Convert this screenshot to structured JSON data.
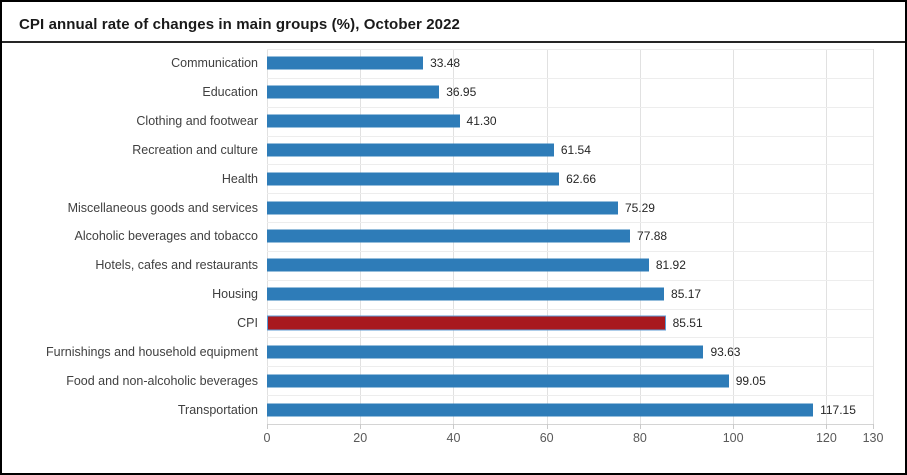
{
  "title": "CPI annual rate of changes in main groups (%), October 2022",
  "chart_data": {
    "type": "bar",
    "orientation": "horizontal",
    "title": "CPI annual rate of changes in main groups (%), October 2022",
    "categories": [
      "Communication",
      "Education",
      "Clothing and footwear",
      "Recreation and culture",
      "Health",
      "Miscellaneous goods and services",
      "Alcoholic beverages and tobacco",
      "Hotels, cafes and restaurants",
      "Housing",
      "CPI",
      "Furnishings and household equipment",
      "Food and non-alcoholic beverages",
      "Transportation"
    ],
    "values": [
      33.48,
      36.95,
      41.3,
      61.54,
      62.66,
      75.29,
      77.88,
      81.92,
      85.17,
      85.51,
      93.63,
      99.05,
      117.15
    ],
    "value_labels": [
      "33.48",
      "36.95",
      "41.30",
      "61.54",
      "62.66",
      "75.29",
      "77.88",
      "81.92",
      "85.17",
      "85.51",
      "93.63",
      "99.05",
      "117.15"
    ],
    "highlight_category": "CPI",
    "xlabel": "",
    "ylabel": "",
    "xlim": [
      0,
      130
    ],
    "x_ticks": [
      0,
      20,
      40,
      60,
      80,
      100,
      120,
      130
    ],
    "grid": "on",
    "legend": "none"
  },
  "colors": {
    "bar": "#2e7cb8",
    "highlight_bar_fill": "#a8191e",
    "highlight_bar_border": "#5b9bd5",
    "grid_vertical": "#e1e1e1",
    "grid_horizontal": "#ededed",
    "axis_line": "#d4d4d4",
    "tick_label": "#595959",
    "category_label": "#404040",
    "value_label": "#262626",
    "title_text": "#1a1a1a"
  }
}
